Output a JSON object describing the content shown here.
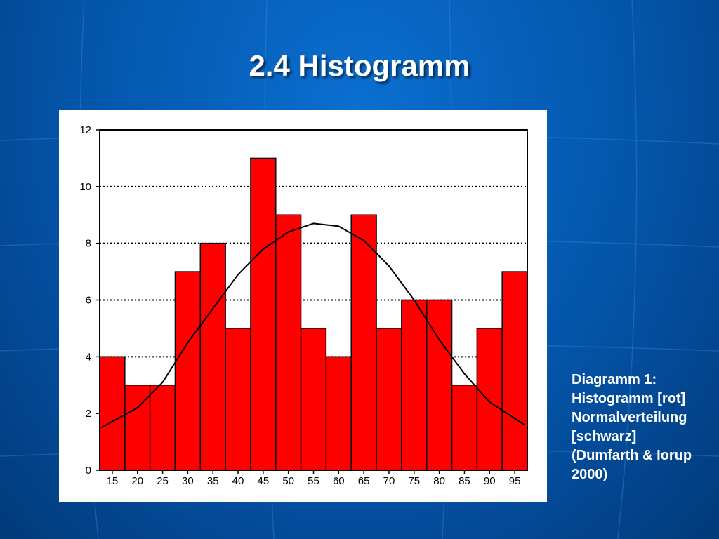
{
  "slide": {
    "title": "2.4 Histogramm",
    "caption_lines": [
      "Diagramm 1:",
      "Histogramm [rot]",
      "Normalverteilung",
      "[schwarz]",
      "(Dumfarth & Iorup",
      "2000)"
    ]
  },
  "colors": {
    "background": "#0455aa",
    "bar_fill": "#ff0000",
    "curve": "#000000",
    "text": "#ffffff"
  },
  "chart_data": {
    "type": "bar",
    "title": "",
    "xlabel": "",
    "ylabel": "",
    "categories": [
      "15",
      "20",
      "25",
      "30",
      "35",
      "40",
      "45",
      "50",
      "55",
      "60",
      "65",
      "70",
      "75",
      "80",
      "85",
      "90",
      "95"
    ],
    "values": [
      4,
      3,
      3,
      7,
      8,
      5,
      11,
      9,
      5,
      4,
      9,
      5,
      6,
      6,
      3,
      5,
      7
    ],
    "ylim": [
      0,
      12
    ],
    "yticks": [
      "0",
      "2",
      "4",
      "6",
      "8",
      "10",
      "12"
    ],
    "grid": "horizontal dotted",
    "overlay": {
      "type": "line",
      "name": "Normalverteilung",
      "x": [
        15,
        20,
        25,
        30,
        35,
        40,
        45,
        50,
        55,
        60,
        65,
        70,
        75,
        80,
        85,
        90,
        95
      ],
      "y": [
        1.5,
        2.2,
        3.1,
        4.5,
        5.7,
        6.9,
        7.8,
        8.4,
        8.7,
        8.6,
        8.1,
        7.2,
        6.0,
        4.6,
        3.4,
        2.4,
        1.6
      ]
    }
  }
}
